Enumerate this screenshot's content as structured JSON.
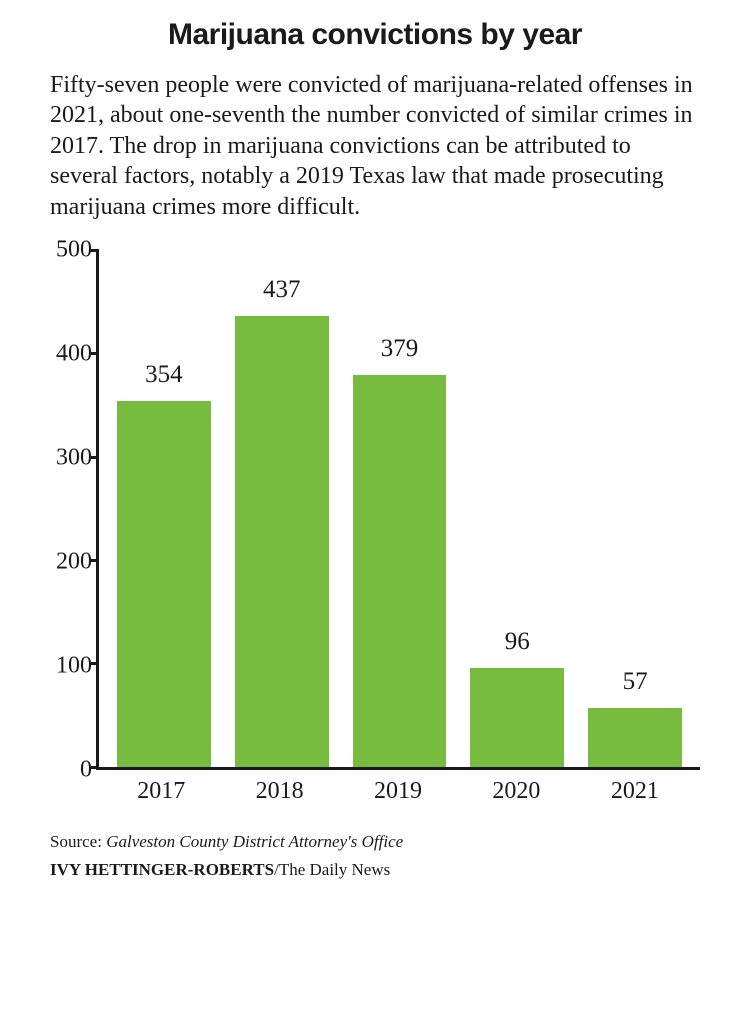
{
  "title": "Marijuana convictions by year",
  "subtitle": "Fifty-seven people were convicted of marijuana-related offenses in 2021, about one-seventh the number convicted of similar crimes in 2017. The drop in marijuana convictions can be attributed to several factors, notably a 2019 Texas law that made prosecuting marijuana crimes more difficult.",
  "chart": {
    "type": "bar",
    "categories": [
      "2017",
      "2018",
      "2019",
      "2020",
      "2021"
    ],
    "values": [
      354,
      437,
      379,
      96,
      57
    ],
    "bar_color": "#77bc3f",
    "ylim": [
      0,
      500
    ],
    "yticks": [
      0,
      100,
      200,
      300,
      400,
      500
    ],
    "axis_color": "#1a1a1a",
    "background_color": "#ffffff",
    "value_fontsize": 25,
    "axis_fontsize": 24,
    "bar_width": 0.72
  },
  "source_label": "Source: ",
  "source_name": "Galveston County District Attorney's Office",
  "byline_author": "IVY HETTINGER-ROBERTS",
  "byline_sep": "/",
  "byline_org": "The Daily News"
}
